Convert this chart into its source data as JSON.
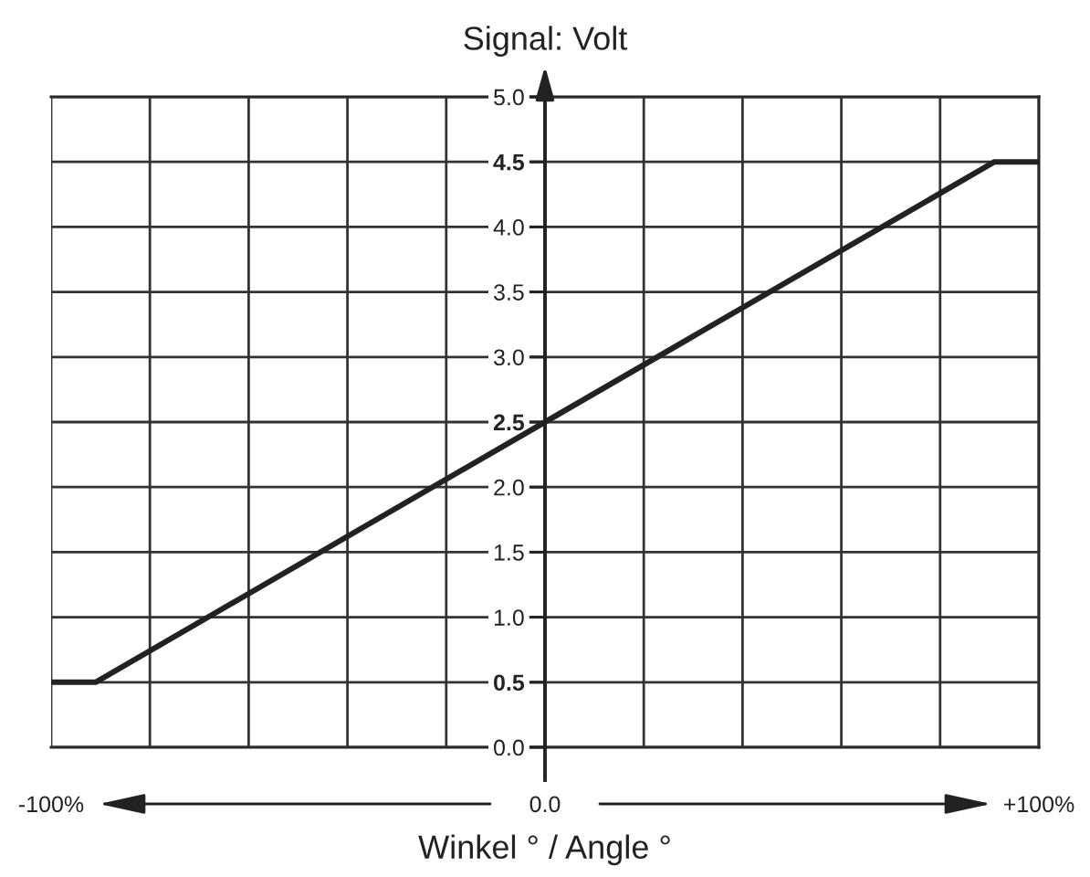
{
  "chart_data": {
    "type": "line",
    "xlabel": "Winkel ° / Angle °",
    "ylabel": "Signal: Volt",
    "x": [
      -100,
      -91,
      0,
      91,
      100
    ],
    "series": [
      {
        "color": "#222222",
        "values": [
          0.5,
          0.5,
          2.5,
          4.5,
          4.5
        ]
      }
    ],
    "xlim": [
      -100,
      100
    ],
    "ylim": [
      0,
      5
    ],
    "xticks": [
      {
        "value": -100,
        "label": "-100%"
      },
      {
        "value": -80,
        "label": null
      },
      {
        "value": -60,
        "label": null
      },
      {
        "value": -40,
        "label": null
      },
      {
        "value": -20,
        "label": null
      },
      {
        "value": 0,
        "label": "0.0"
      },
      {
        "value": 20,
        "label": null
      },
      {
        "value": 40,
        "label": null
      },
      {
        "value": 60,
        "label": null
      },
      {
        "value": 80,
        "label": null
      },
      {
        "value": 100,
        "label": "+100%"
      }
    ],
    "yticks": [
      {
        "value": 0,
        "label": "0.0"
      },
      {
        "value": 0.5,
        "label": "0.5"
      },
      {
        "value": 1,
        "label": "1.0"
      },
      {
        "value": 1.5,
        "label": "1.5"
      },
      {
        "value": 2,
        "label": "2.0"
      },
      {
        "value": 2.5,
        "label": "2.5"
      },
      {
        "value": 3,
        "label": "3.0"
      },
      {
        "value": 3.5,
        "label": "3.5"
      },
      {
        "value": 4,
        "label": "4.0"
      },
      {
        "value": 4.5,
        "label": "4.5"
      },
      {
        "value": 5,
        "label": "5.0"
      }
    ],
    "grid": true,
    "marker": "none",
    "line_style": "solid"
  }
}
